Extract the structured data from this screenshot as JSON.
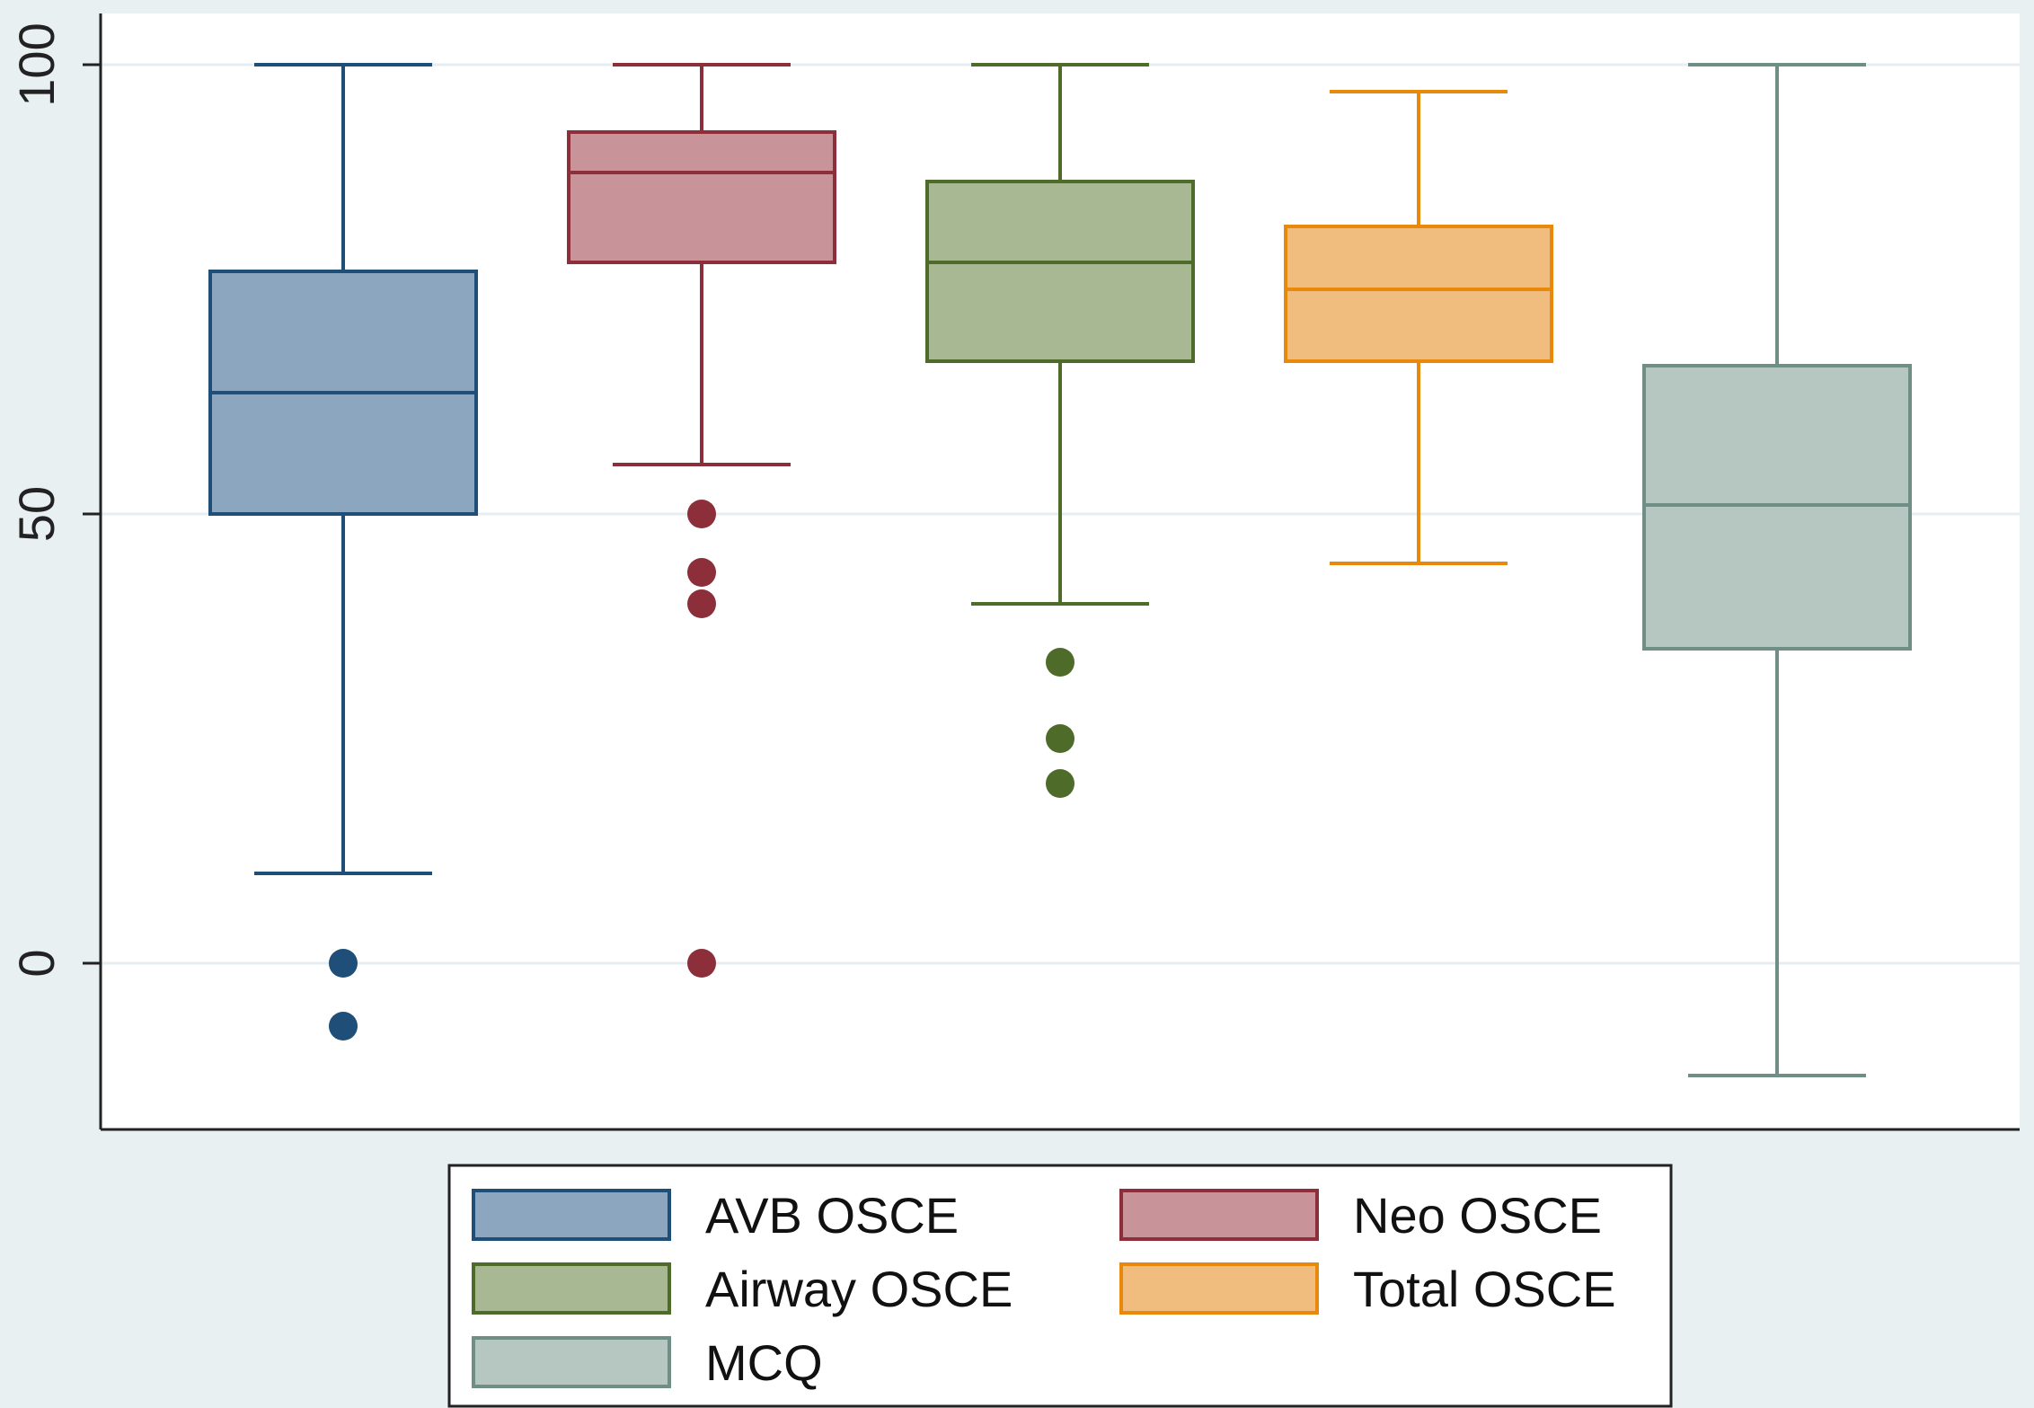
{
  "chart_data": {
    "type": "boxplot",
    "title": "",
    "xlabel": "",
    "ylabel": "",
    "ylim": [
      -19,
      106
    ],
    "yticks": [
      0,
      50,
      100
    ],
    "ytick_labels": [
      "0",
      "50",
      "100"
    ],
    "grid": true,
    "legend": {
      "placement": "bottom",
      "columns": 2,
      "entries": [
        "AVB OSCE",
        "Neo OSCE",
        "Airway OSCE",
        "Total OSCE",
        "MCQ"
      ]
    },
    "series": [
      {
        "name": "AVB OSCE",
        "min": 10,
        "q1": 50,
        "median": 63.5,
        "q3": 77,
        "max": 100,
        "outliers": [
          0,
          -7
        ],
        "stroke": "#1f4e79",
        "fill": "#8da6bf"
      },
      {
        "name": "Neo OSCE",
        "min": 55.5,
        "q1": 78,
        "median": 88,
        "q3": 92.5,
        "max": 100,
        "outliers": [
          50,
          43.5,
          40,
          0
        ],
        "stroke": "#8c2f3a",
        "fill": "#c99499"
      },
      {
        "name": "Airway OSCE",
        "min": 40,
        "q1": 67,
        "median": 78,
        "q3": 87,
        "max": 100,
        "outliers": [
          33.5,
          25,
          20
        ],
        "stroke": "#4f6b2a",
        "fill": "#a8b892"
      },
      {
        "name": "Total OSCE",
        "min": 44.5,
        "q1": 67,
        "median": 75,
        "q3": 82,
        "max": 97,
        "outliers": [],
        "stroke": "#e8890c",
        "fill": "#f1bd7f"
      },
      {
        "name": "MCQ",
        "min": -12.5,
        "q1": 35,
        "median": 51,
        "q3": 66.5,
        "max": 100,
        "outliers": [],
        "stroke": "#6f8f86",
        "fill": "#b6c7c1"
      }
    ]
  }
}
